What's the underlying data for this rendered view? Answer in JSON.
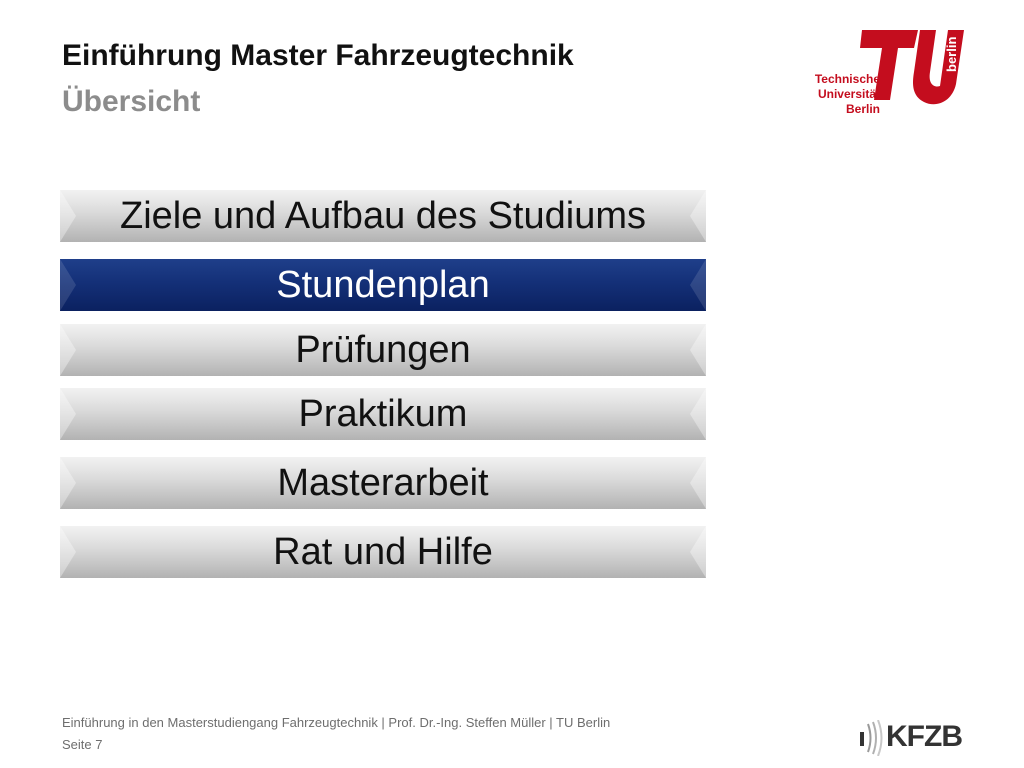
{
  "header": {
    "title": "Einführung Master Fahrzeugtechnik",
    "subtitle": "Übersicht"
  },
  "logo_tu": {
    "line1": "Technische",
    "line2": "Universität",
    "line3": "Berlin",
    "mark_text": "berlin",
    "color": "#c40d1e"
  },
  "menu": {
    "items": [
      {
        "label": "Ziele und Aufbau des Studiums",
        "active": false
      },
      {
        "label": "Stundenplan",
        "active": true
      },
      {
        "label": "Prüfungen",
        "active": false
      },
      {
        "label": "Praktikum",
        "active": false
      },
      {
        "label": "Masterarbeit",
        "active": false
      },
      {
        "label": "Rat und Hilfe",
        "active": false
      }
    ],
    "active_color": "#143078",
    "inactive_color": "#cfcfcf"
  },
  "footer": {
    "text": "Einführung in den Masterstudiengang Fahrzeugtechnik | Prof. Dr.-Ing. Steffen Müller | TU Berlin",
    "page": "Seite 7"
  },
  "logo_kfzb": {
    "text": "KFZB"
  }
}
